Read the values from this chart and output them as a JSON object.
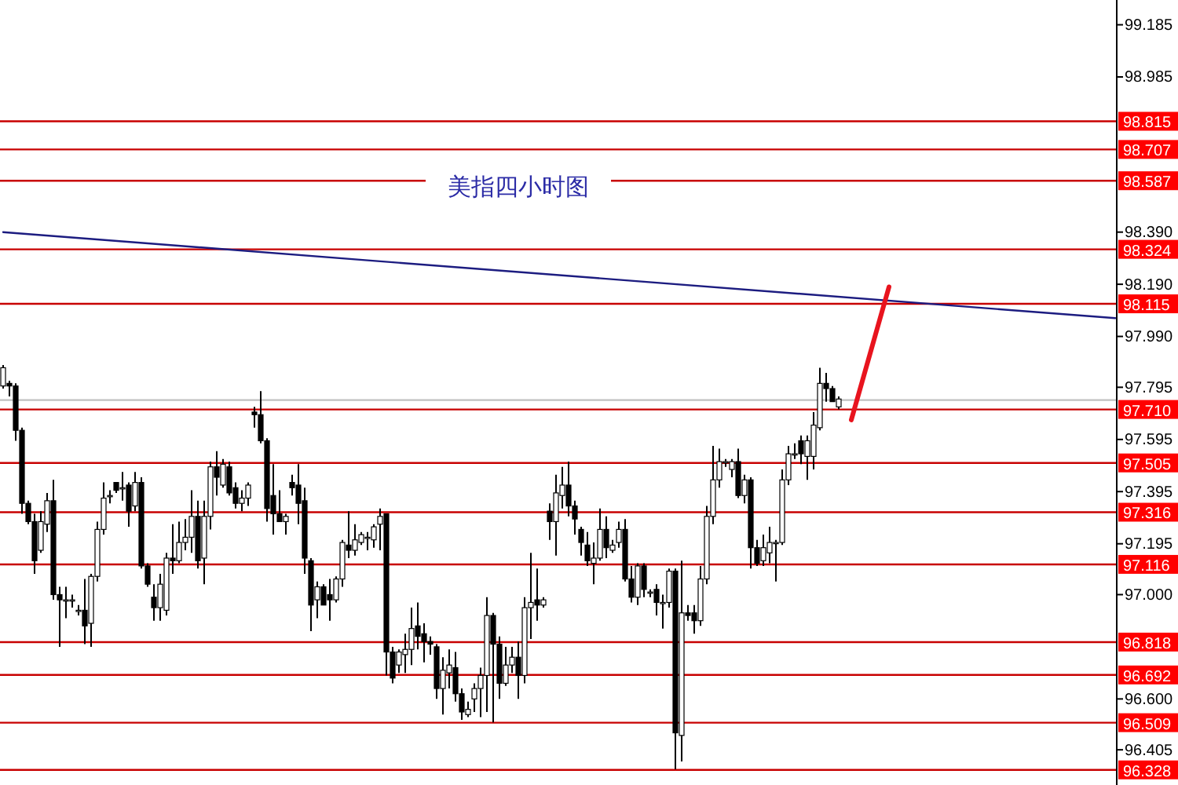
{
  "chart_data": {
    "type": "candlestick",
    "title": "美指四小时图",
    "categories": [
      null,
      null,
      null,
      null,
      null,
      null,
      null,
      null,
      null,
      null,
      null,
      null,
      null,
      null,
      null,
      null,
      null,
      null,
      null,
      null,
      null,
      null,
      null,
      null,
      null,
      null,
      null,
      null,
      null,
      null,
      null,
      null,
      null,
      null,
      null,
      null,
      null,
      null,
      null,
      null,
      null,
      null,
      null,
      null,
      null,
      null,
      null,
      null,
      null,
      null,
      null,
      null,
      null,
      null,
      null,
      null,
      null,
      null,
      null,
      null,
      null,
      null,
      null,
      null,
      null,
      null,
      null,
      null,
      null,
      null,
      null,
      null,
      null,
      null,
      null,
      null,
      null,
      null,
      null,
      null,
      null,
      null,
      null,
      null,
      null,
      null,
      null,
      null,
      null,
      null,
      null,
      null,
      null,
      null,
      null,
      null,
      null,
      null,
      null,
      null,
      null,
      null,
      null,
      null,
      null,
      null,
      null,
      null,
      null,
      null,
      null,
      null,
      null,
      null,
      null,
      null,
      null,
      null,
      null,
      null,
      null,
      null,
      null,
      null,
      null,
      null,
      null,
      null,
      null,
      null,
      null,
      null,
      null,
      null,
      null,
      null,
      null,
      null,
      null,
      null,
      null,
      null,
      null,
      null,
      null,
      null,
      null,
      null,
      null,
      null,
      null,
      null,
      null,
      null,
      null,
      null,
      null,
      null,
      null,
      null,
      null,
      null,
      null,
      null,
      null,
      null,
      null,
      null,
      null,
      null,
      null,
      null,
      null,
      null,
      null,
      null,
      null,
      null
    ],
    "ohlc": [
      [
        97.8,
        97.88,
        97.79,
        97.87
      ],
      [
        97.81,
        97.82,
        97.76,
        97.8
      ],
      [
        97.8,
        97.81,
        97.59,
        97.63
      ],
      [
        97.63,
        97.64,
        97.31,
        97.35
      ],
      [
        97.35,
        97.36,
        97.27,
        97.28
      ],
      [
        97.28,
        97.31,
        97.08,
        97.13
      ],
      [
        97.17,
        97.32,
        97.16,
        97.28
      ],
      [
        97.27,
        97.39,
        97.24,
        97.36
      ],
      [
        97.36,
        97.44,
        96.98,
        97.0
      ],
      [
        97.0,
        97.03,
        96.8,
        96.98
      ],
      [
        96.98,
        97.03,
        96.91,
        96.98
      ],
      [
        96.98,
        97.0,
        96.95,
        96.98
      ],
      [
        96.94,
        96.96,
        96.92,
        96.94
      ],
      [
        96.94,
        97.06,
        96.81,
        96.88
      ],
      [
        96.89,
        97.08,
        96.8,
        97.07
      ],
      [
        97.07,
        97.28,
        97.05,
        97.25
      ],
      [
        97.25,
        97.43,
        97.23,
        97.37
      ],
      [
        97.38,
        97.4,
        97.35,
        97.38
      ],
      [
        97.43,
        97.43,
        97.39,
        97.4
      ],
      [
        97.41,
        97.47,
        97.36,
        97.41
      ],
      [
        97.42,
        97.43,
        97.26,
        97.32
      ],
      [
        97.34,
        97.47,
        97.32,
        97.43
      ],
      [
        97.43,
        97.45,
        97.1,
        97.11
      ],
      [
        97.11,
        97.12,
        97.03,
        97.04
      ],
      [
        96.99,
        97.04,
        96.9,
        96.95
      ],
      [
        96.95,
        97.08,
        96.9,
        97.04
      ],
      [
        96.94,
        97.16,
        96.92,
        97.14
      ],
      [
        97.14,
        97.27,
        97.08,
        97.13
      ],
      [
        97.13,
        97.28,
        97.12,
        97.2
      ],
      [
        97.2,
        97.29,
        97.17,
        97.22
      ],
      [
        97.22,
        97.4,
        97.16,
        97.3
      ],
      [
        97.3,
        97.36,
        97.1,
        97.13
      ],
      [
        97.14,
        97.36,
        97.04,
        97.3
      ],
      [
        97.3,
        97.51,
        97.25,
        97.49
      ],
      [
        97.49,
        97.55,
        97.38,
        97.45
      ],
      [
        97.42,
        97.52,
        97.41,
        97.5
      ],
      [
        97.49,
        97.51,
        97.38,
        97.39
      ],
      [
        97.41,
        97.43,
        97.33,
        97.35
      ],
      [
        97.35,
        97.4,
        97.32,
        97.37
      ],
      [
        97.37,
        97.43,
        97.34,
        97.42
      ],
      [
        97.7,
        97.72,
        97.64,
        97.69
      ],
      [
        97.69,
        97.78,
        97.58,
        97.59
      ],
      [
        97.59,
        97.6,
        97.28,
        97.33
      ],
      [
        97.38,
        97.5,
        97.23,
        97.31
      ],
      [
        97.31,
        97.4,
        97.28,
        97.28
      ],
      [
        97.28,
        97.31,
        97.23,
        97.3
      ],
      [
        97.43,
        97.46,
        97.38,
        97.41
      ],
      [
        97.42,
        97.5,
        97.27,
        97.35
      ],
      [
        97.36,
        97.41,
        97.08,
        97.14
      ],
      [
        97.13,
        97.14,
        96.86,
        96.96
      ],
      [
        96.98,
        97.05,
        96.91,
        97.03
      ],
      [
        97.03,
        97.04,
        96.96,
        96.96
      ],
      [
        97.0,
        97.06,
        96.9,
        96.98
      ],
      [
        96.98,
        97.07,
        96.97,
        97.06
      ],
      [
        97.06,
        97.21,
        97.03,
        97.2
      ],
      [
        97.19,
        97.32,
        97.14,
        97.17
      ],
      [
        97.17,
        97.27,
        97.15,
        97.21
      ],
      [
        97.2,
        97.24,
        97.19,
        97.23
      ],
      [
        97.22,
        97.24,
        97.17,
        97.22
      ],
      [
        97.21,
        97.27,
        97.18,
        97.26
      ],
      [
        97.27,
        97.33,
        97.17,
        97.3
      ],
      [
        97.31,
        97.31,
        96.69,
        96.78
      ],
      [
        96.78,
        96.8,
        96.66,
        96.68
      ],
      [
        96.73,
        96.79,
        96.7,
        96.78
      ],
      [
        96.77,
        96.85,
        96.7,
        96.79
      ],
      [
        96.79,
        96.95,
        96.73,
        96.87
      ],
      [
        96.88,
        96.97,
        96.79,
        96.84
      ],
      [
        96.85,
        96.89,
        96.74,
        96.82
      ],
      [
        96.82,
        96.84,
        96.77,
        96.81
      ],
      [
        96.8,
        96.81,
        96.6,
        96.64
      ],
      [
        96.64,
        96.76,
        96.54,
        96.71
      ],
      [
        96.7,
        96.79,
        96.64,
        96.73
      ],
      [
        96.72,
        96.78,
        96.59,
        96.62
      ],
      [
        96.62,
        96.64,
        96.52,
        96.55
      ],
      [
        96.54,
        96.59,
        96.53,
        96.56
      ],
      [
        96.6,
        96.66,
        96.55,
        96.64
      ],
      [
        96.64,
        96.72,
        96.53,
        96.69
      ],
      [
        96.69,
        96.99,
        96.55,
        96.92
      ],
      [
        96.92,
        96.93,
        96.51,
        96.81
      ],
      [
        96.81,
        96.84,
        96.6,
        96.66
      ],
      [
        96.66,
        96.8,
        96.65,
        96.73
      ],
      [
        96.73,
        96.8,
        96.7,
        96.76
      ],
      [
        96.76,
        96.82,
        96.6,
        96.69
      ],
      [
        96.69,
        96.99,
        96.66,
        96.95
      ],
      [
        96.95,
        97.16,
        96.83,
        96.97
      ],
      [
        96.98,
        97.1,
        96.9,
        96.96
      ],
      [
        96.96,
        96.99,
        96.95,
        96.98
      ],
      [
        97.32,
        97.35,
        97.21,
        97.28
      ],
      [
        97.28,
        97.46,
        97.15,
        97.39
      ],
      [
        97.38,
        97.49,
        97.33,
        97.42
      ],
      [
        97.42,
        97.51,
        97.3,
        97.34
      ],
      [
        97.34,
        97.36,
        97.23,
        97.29
      ],
      [
        97.25,
        97.26,
        97.15,
        97.2
      ],
      [
        97.19,
        97.24,
        97.11,
        97.13
      ],
      [
        97.12,
        97.2,
        97.04,
        97.14
      ],
      [
        97.14,
        97.33,
        97.13,
        97.25
      ],
      [
        97.25,
        97.3,
        97.14,
        97.18
      ],
      [
        97.17,
        97.21,
        97.16,
        97.19
      ],
      [
        97.2,
        97.28,
        97.18,
        97.25
      ],
      [
        97.25,
        97.29,
        97.05,
        97.06
      ],
      [
        97.06,
        97.11,
        96.97,
        96.99
      ],
      [
        96.99,
        97.12,
        96.96,
        97.11
      ],
      [
        97.11,
        97.12,
        96.99,
        97.02
      ],
      [
        97.01,
        97.02,
        96.99,
        97.01
      ],
      [
        97.02,
        97.04,
        96.92,
        96.97
      ],
      [
        96.97,
        97.0,
        96.87,
        96.97
      ],
      [
        96.97,
        97.1,
        96.95,
        97.09
      ],
      [
        97.09,
        97.1,
        96.33,
        96.47
      ],
      [
        96.46,
        97.13,
        96.36,
        96.93
      ],
      [
        96.93,
        96.96,
        96.9,
        96.92
      ],
      [
        96.93,
        96.96,
        96.85,
        96.9
      ],
      [
        96.9,
        97.11,
        96.88,
        97.06
      ],
      [
        97.06,
        97.34,
        97.04,
        97.3
      ],
      [
        97.3,
        97.57,
        97.27,
        97.44
      ],
      [
        97.44,
        97.56,
        97.41,
        97.51
      ],
      [
        97.51,
        97.52,
        97.49,
        97.51
      ],
      [
        97.48,
        97.52,
        97.45,
        97.51
      ],
      [
        97.51,
        97.56,
        97.37,
        97.38
      ],
      [
        97.38,
        97.46,
        97.35,
        97.44
      ],
      [
        97.44,
        97.45,
        97.1,
        97.18
      ],
      [
        97.18,
        97.21,
        97.11,
        97.12
      ],
      [
        97.13,
        97.23,
        97.11,
        97.18
      ],
      [
        97.16,
        97.26,
        97.12,
        97.2
      ],
      [
        97.2,
        97.21,
        97.05,
        97.2
      ],
      [
        97.2,
        97.48,
        97.19,
        97.44
      ],
      [
        97.44,
        97.57,
        97.42,
        97.54
      ],
      [
        97.54,
        97.58,
        97.52,
        97.54
      ],
      [
        97.59,
        97.61,
        97.5,
        97.54
      ],
      [
        97.53,
        97.61,
        97.44,
        97.59
      ],
      [
        97.53,
        97.7,
        97.48,
        97.65
      ],
      [
        97.64,
        97.87,
        97.63,
        97.81
      ],
      [
        97.81,
        97.85,
        97.74,
        97.79
      ],
      [
        97.79,
        97.8,
        97.74,
        97.74
      ],
      [
        97.72,
        97.76,
        97.71,
        97.75
      ],
      null,
      null,
      null,
      null,
      null,
      null,
      null,
      null,
      null,
      null,
      null,
      null,
      null,
      null,
      null,
      null,
      null,
      null,
      null,
      null,
      null,
      null,
      null,
      null,
      null,
      null,
      null,
      null,
      null,
      null,
      null,
      null,
      null,
      null,
      null,
      null,
      null,
      null,
      null,
      null,
      null,
      null,
      null,
      null
    ],
    "series": [
      {
        "type": "line",
        "color": "#1c1c80",
        "values": [
          98.39,
          null,
          null,
          null,
          null,
          null,
          null,
          null,
          null,
          null,
          null,
          null,
          null,
          null,
          null,
          null,
          null,
          null,
          null,
          null,
          null,
          null,
          null,
          null,
          null,
          null,
          null,
          null,
          null,
          null,
          null,
          null,
          null,
          null,
          null,
          null,
          null,
          null,
          null,
          null,
          null,
          null,
          null,
          null,
          null,
          null,
          null,
          null,
          null,
          null,
          null,
          null,
          null,
          null,
          null,
          null,
          null,
          null,
          null,
          null,
          null,
          null,
          null,
          null,
          null,
          null,
          null,
          null,
          null,
          null,
          null,
          null,
          null,
          null,
          null,
          null,
          null,
          null,
          null,
          null,
          null,
          null,
          null,
          null,
          null,
          null,
          null,
          null,
          null,
          null,
          null,
          null,
          null,
          null,
          null,
          null,
          null,
          null,
          null,
          null,
          null,
          null,
          null,
          null,
          null,
          null,
          null,
          null,
          null,
          null,
          null,
          null,
          null,
          null,
          null,
          null,
          null,
          null,
          null,
          null,
          null,
          null,
          null,
          null,
          null,
          null,
          null,
          null,
          null,
          null,
          null,
          null,
          null,
          null,
          null,
          null,
          null,
          null,
          null,
          null,
          null,
          null,
          null,
          null,
          null,
          null,
          null,
          null,
          null,
          null,
          null,
          null,
          null,
          null,
          null,
          null,
          null,
          null,
          null,
          null,
          null,
          null,
          null,
          null,
          null,
          null,
          null,
          null,
          null,
          null,
          null,
          null,
          null,
          null,
          null,
          null,
          null,
          98.06
        ]
      },
      {
        "type": "line",
        "color": "#e8141e",
        "values": [
          null,
          null,
          null,
          null,
          null,
          null,
          null,
          null,
          null,
          null,
          null,
          null,
          null,
          null,
          null,
          null,
          null,
          null,
          null,
          null,
          null,
          null,
          null,
          null,
          null,
          null,
          null,
          null,
          null,
          null,
          null,
          null,
          null,
          null,
          null,
          null,
          null,
          null,
          null,
          null,
          null,
          null,
          null,
          null,
          null,
          null,
          null,
          null,
          null,
          null,
          null,
          null,
          null,
          null,
          null,
          null,
          null,
          null,
          null,
          null,
          null,
          null,
          null,
          null,
          null,
          null,
          null,
          null,
          null,
          null,
          null,
          null,
          null,
          null,
          null,
          null,
          null,
          null,
          null,
          null,
          null,
          null,
          null,
          null,
          null,
          null,
          null,
          null,
          null,
          null,
          null,
          null,
          null,
          null,
          null,
          null,
          null,
          null,
          null,
          null,
          null,
          null,
          null,
          null,
          null,
          null,
          null,
          null,
          null,
          null,
          null,
          null,
          null,
          null,
          null,
          null,
          null,
          null,
          null,
          null,
          null,
          null,
          null,
          null,
          null,
          null,
          null,
          null,
          null,
          null,
          null,
          null,
          null,
          null,
          null,
          97.67,
          null,
          null,
          null,
          null,
          null,
          98.18,
          null,
          null,
          null,
          null,
          null,
          null,
          null,
          null,
          null,
          null,
          null,
          null,
          null,
          null,
          null,
          null,
          null,
          null,
          null,
          null,
          null,
          null,
          null,
          null,
          null,
          null,
          null,
          null,
          null,
          null,
          null,
          null,
          null,
          null,
          null,
          null
        ]
      }
    ],
    "ylim": [
      96.27,
      99.28
    ],
    "yticks": [
      99.185,
      98.985,
      {
        "value": 98.39,
        "label": "98.390"
      },
      {
        "value": 98.19,
        "label": "98.190"
      },
      {
        "value": 97.99,
        "label": "97.990"
      },
      97.795,
      97.595,
      97.395,
      97.195,
      {
        "value": 97,
        "label": "97.000"
      },
      {
        "value": 96.6,
        "label": "96.600"
      },
      96.405
    ],
    "ref_lines": [
      {
        "axis": "y",
        "value": 98.815,
        "label": "98.815",
        "color": "#c80000"
      },
      {
        "axis": "y",
        "value": 98.707,
        "label": "98.707",
        "color": "#c80000"
      },
      {
        "axis": "y",
        "value": 98.587,
        "label": "98.587",
        "color": "#c80000"
      },
      {
        "axis": "y",
        "value": 98.324,
        "label": "98.324",
        "color": "#c80000"
      },
      {
        "axis": "y",
        "value": 98.115,
        "label": "98.115",
        "color": "#c80000"
      },
      {
        "axis": "y",
        "value": 97.746,
        "color": "#c0c0c0"
      },
      {
        "axis": "y",
        "value": 97.71,
        "label": "97.710",
        "color": "#c80000"
      },
      {
        "axis": "y",
        "value": 97.505,
        "label": "97.505",
        "color": "#c80000"
      },
      {
        "axis": "y",
        "value": 97.316,
        "label": "97.316",
        "color": "#c80000"
      },
      {
        "axis": "y",
        "value": 97.116,
        "label": "97.116",
        "color": "#c80000"
      },
      {
        "axis": "y",
        "value": 96.818,
        "label": "96.818",
        "color": "#c80000"
      },
      {
        "axis": "y",
        "value": 96.692,
        "label": "96.692",
        "color": "#c80000"
      },
      {
        "axis": "y",
        "value": 96.509,
        "label": "96.509",
        "color": "#c80000"
      },
      {
        "axis": "y",
        "value": 96.328,
        "label": "96.328",
        "color": "#c80000"
      }
    ]
  }
}
